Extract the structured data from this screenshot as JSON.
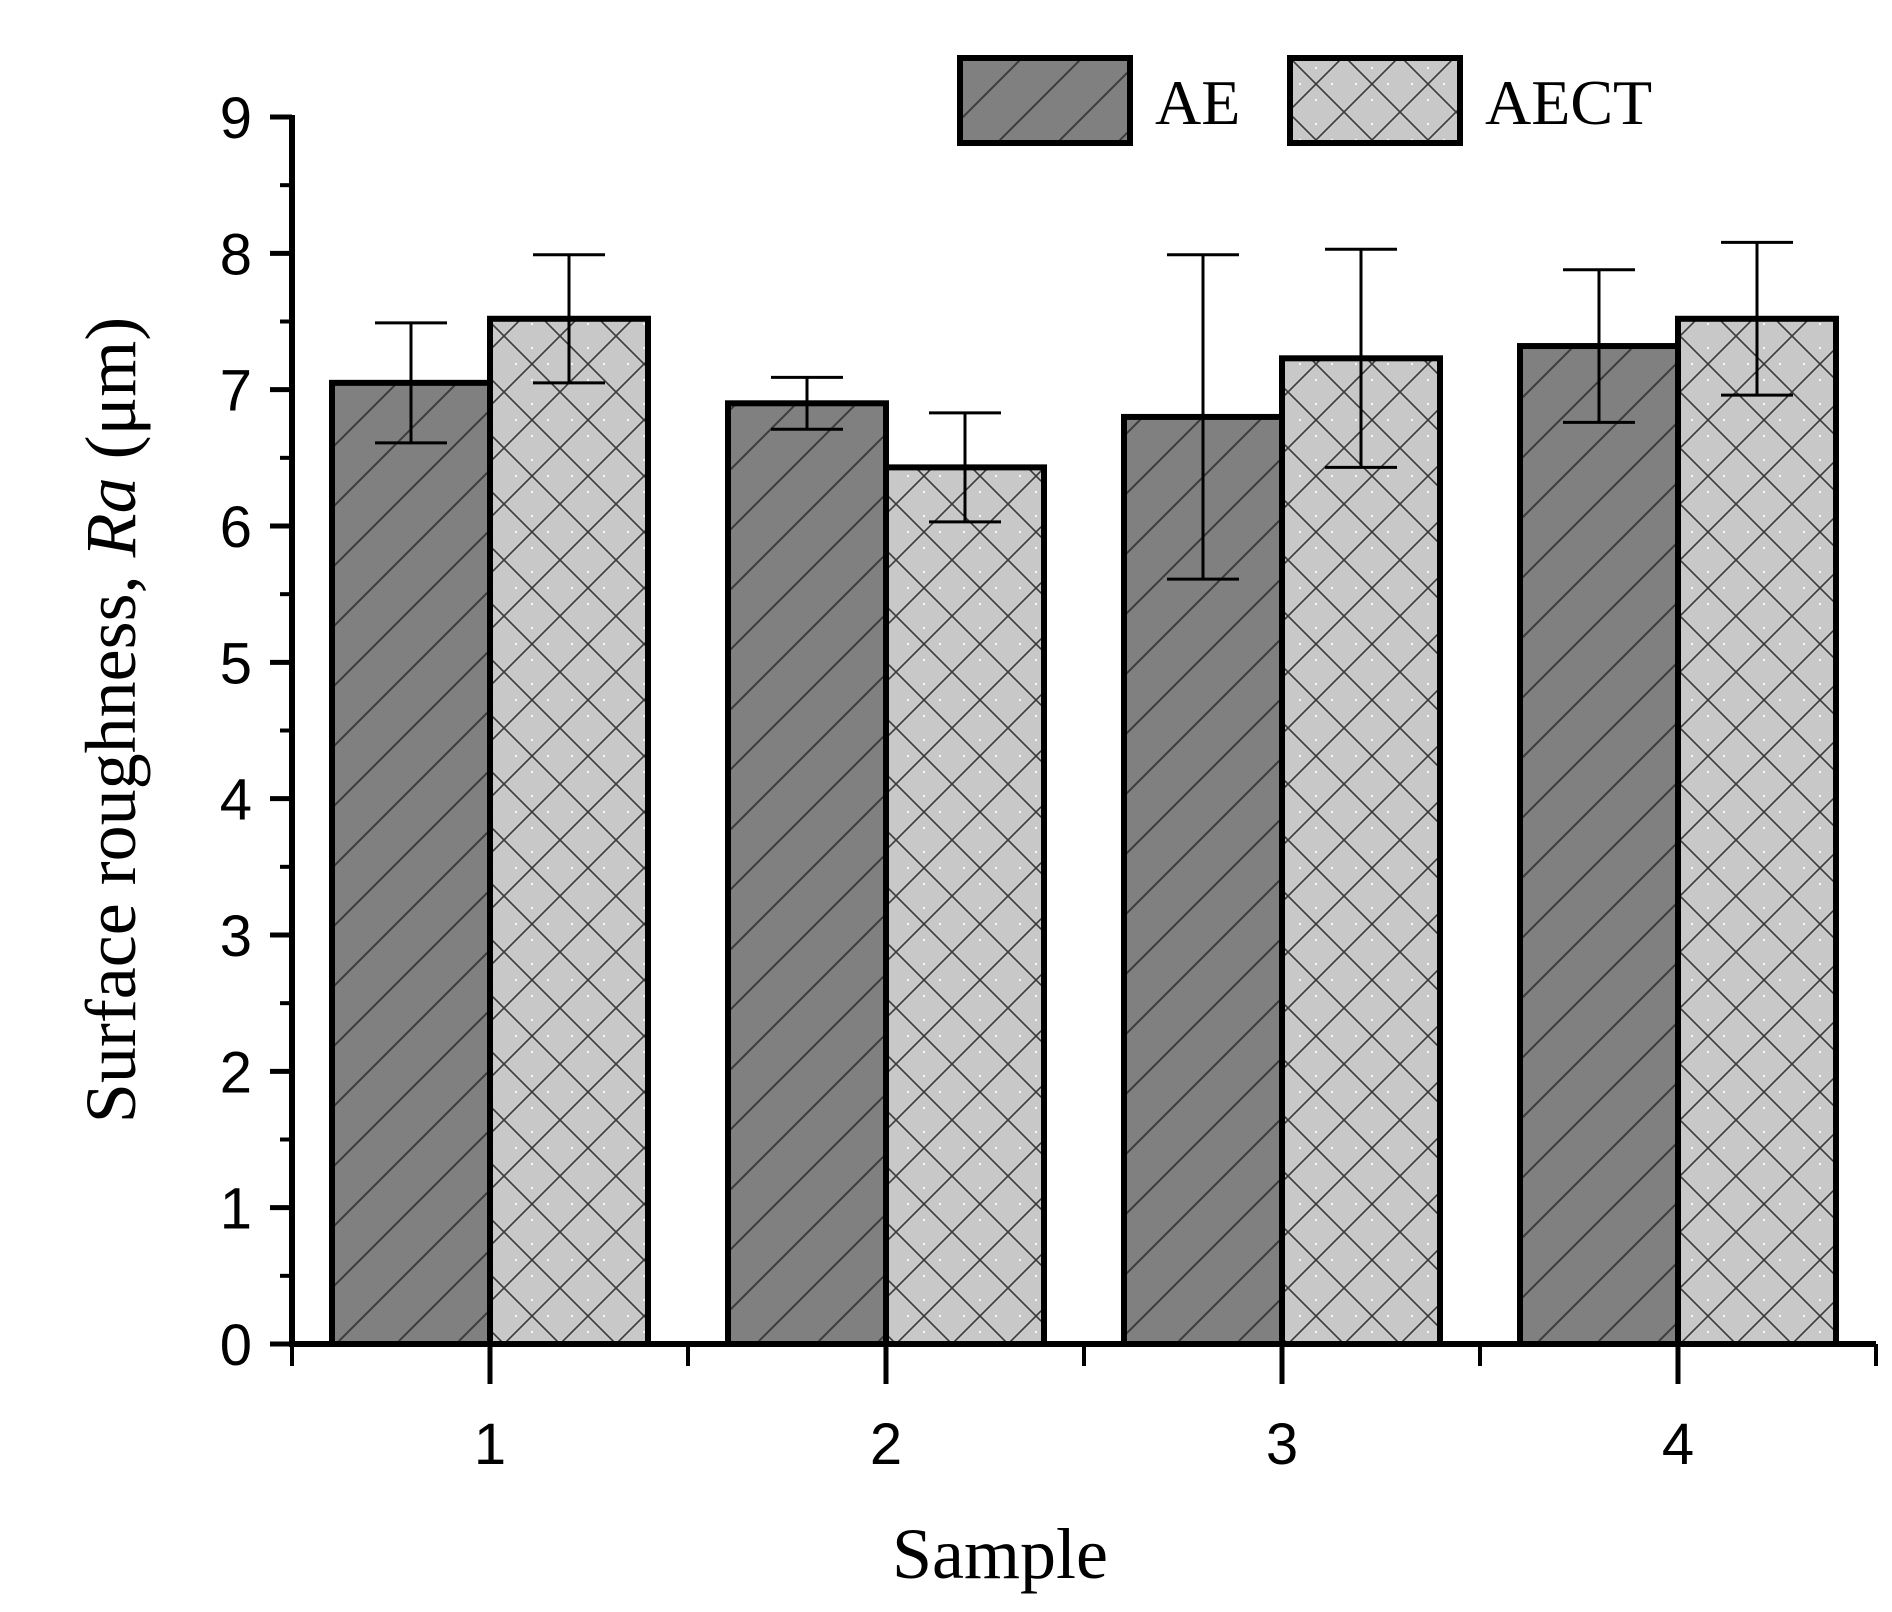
{
  "chart_data": {
    "type": "bar",
    "title": "",
    "xlabel": "Sample",
    "ylabel_prefix": "Surface roughness, ",
    "ylabel_italic": "Ra",
    "ylabel_suffix": " (μm)",
    "categories": [
      "1",
      "2",
      "3",
      "4"
    ],
    "ylim": [
      0,
      9
    ],
    "yticks": [
      "0",
      "1",
      "2",
      "3",
      "4",
      "5",
      "6",
      "7",
      "8",
      "9"
    ],
    "legend_position": "top-right",
    "series": [
      {
        "name": "AE",
        "values": [
          7.05,
          6.9,
          6.8,
          7.32
        ],
        "errors": [
          0.44,
          0.19,
          1.19,
          0.56
        ],
        "color": "#808080",
        "pattern": "diagonal-hatch"
      },
      {
        "name": "AECT",
        "values": [
          7.52,
          6.43,
          7.23,
          7.52
        ],
        "errors": [
          0.47,
          0.4,
          0.8,
          0.56
        ],
        "color": "#c8c8c8",
        "pattern": "cross-hatch"
      }
    ]
  }
}
